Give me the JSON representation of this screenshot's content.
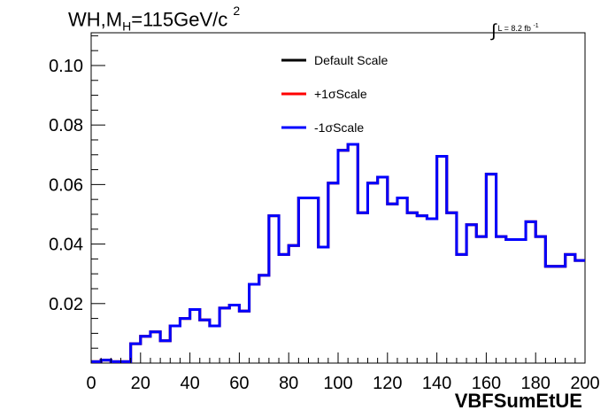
{
  "title": {
    "main": "WH,M",
    "sub": "H",
    "rest": "=115GeV/c",
    "sup": "2"
  },
  "lumi": {
    "symbol": "∫",
    "text": "L = 8.2 fb",
    "sup": "-1"
  },
  "chart_data": {
    "type": "line",
    "title": "WH,MH=115GeV/c2",
    "xlabel": "VBFSumEtUE",
    "ylabel": "",
    "xlim": [
      0,
      200
    ],
    "ylim": [
      0,
      0.111
    ],
    "xticks": [
      0,
      20,
      40,
      60,
      80,
      100,
      120,
      140,
      160,
      180,
      200
    ],
    "yticks": [
      0.02,
      0.04,
      0.06,
      0.08,
      0.1
    ],
    "xtick_labels": [
      "0",
      "20",
      "40",
      "60",
      "80",
      "100",
      "120",
      "140",
      "160",
      "180",
      "200"
    ],
    "ytick_labels": [
      "0.02",
      "0.04",
      "0.06",
      "0.08",
      "0.10"
    ],
    "bin_edges": [
      0,
      4,
      8,
      12,
      16,
      20,
      24,
      28,
      32,
      36,
      40,
      44,
      48,
      52,
      56,
      60,
      64,
      68,
      72,
      76,
      80,
      84,
      88,
      92,
      96,
      100,
      104,
      108,
      112,
      116,
      120,
      124,
      128,
      132,
      136,
      140,
      144,
      148,
      152,
      156,
      160,
      164,
      168,
      172,
      176,
      180,
      184,
      188,
      192,
      196,
      200
    ],
    "series": [
      {
        "name": "Default Scale",
        "color": "#000000",
        "values": [
          0.0005,
          0.001,
          0.0005,
          0.0005,
          0.0065,
          0.009,
          0.0105,
          0.0075,
          0.0125,
          0.015,
          0.018,
          0.0145,
          0.0125,
          0.0185,
          0.0195,
          0.0175,
          0.0265,
          0.0295,
          0.0495,
          0.0365,
          0.0395,
          0.0555,
          0.0555,
          0.039,
          0.0605,
          0.0715,
          0.0735,
          0.0505,
          0.0605,
          0.0625,
          0.0535,
          0.0555,
          0.0505,
          0.0495,
          0.0485,
          0.0695,
          0.0505,
          0.0365,
          0.0465,
          0.0425,
          0.0635,
          0.0425,
          0.0415,
          0.0415,
          0.0475,
          0.0425,
          0.0325,
          0.0325,
          0.0365,
          0.0345
        ]
      },
      {
        "name": "+1σScale",
        "color": "#ff0000",
        "values": [
          0.0005,
          0.001,
          0.0005,
          0.0005,
          0.0065,
          0.009,
          0.0105,
          0.0075,
          0.0125,
          0.015,
          0.018,
          0.0145,
          0.0125,
          0.0185,
          0.0195,
          0.0175,
          0.0265,
          0.0295,
          0.0495,
          0.0365,
          0.0395,
          0.0555,
          0.0555,
          0.039,
          0.0605,
          0.0715,
          0.0735,
          0.0505,
          0.0605,
          0.0625,
          0.0535,
          0.0555,
          0.0505,
          0.0495,
          0.0485,
          0.0695,
          0.0505,
          0.0365,
          0.0465,
          0.0425,
          0.0635,
          0.0425,
          0.0415,
          0.0415,
          0.0475,
          0.0425,
          0.0325,
          0.0325,
          0.0365,
          0.0345
        ]
      },
      {
        "name": "-1σScale",
        "color": "#0000ff",
        "values": [
          0.0005,
          0.001,
          0.0005,
          0.0005,
          0.0065,
          0.009,
          0.0105,
          0.0075,
          0.0125,
          0.015,
          0.018,
          0.0145,
          0.0125,
          0.0185,
          0.0195,
          0.0175,
          0.0265,
          0.0295,
          0.0495,
          0.0365,
          0.0395,
          0.0555,
          0.0555,
          0.039,
          0.0605,
          0.0715,
          0.0735,
          0.0505,
          0.0605,
          0.0625,
          0.0535,
          0.0555,
          0.0505,
          0.0495,
          0.0485,
          0.0695,
          0.0505,
          0.0365,
          0.0465,
          0.0425,
          0.0635,
          0.0425,
          0.0415,
          0.0415,
          0.0475,
          0.0425,
          0.0325,
          0.0325,
          0.0365,
          0.0345
        ]
      }
    ],
    "legend_position": "top-center",
    "grid": false
  }
}
